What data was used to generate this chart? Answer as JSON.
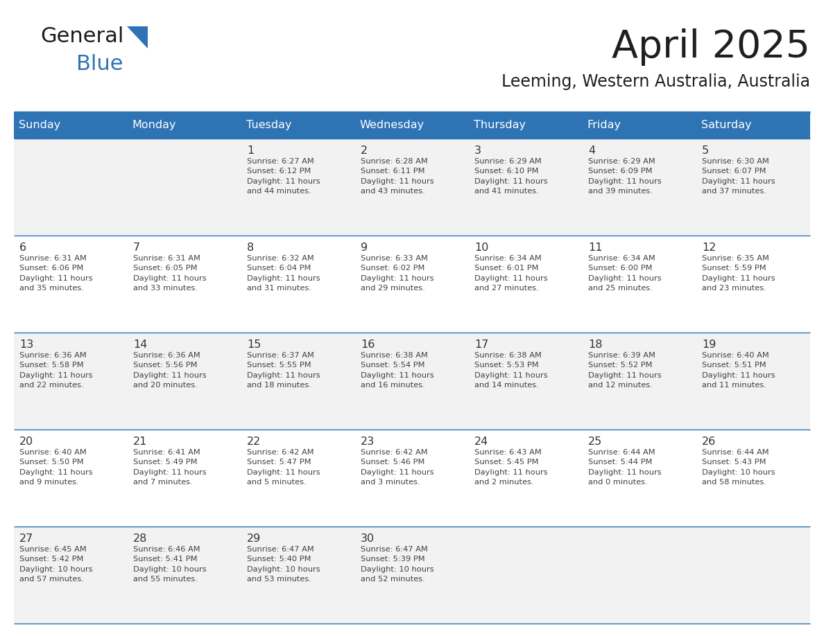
{
  "title": "April 2025",
  "subtitle": "Leeming, Western Australia, Australia",
  "days_of_week": [
    "Sunday",
    "Monday",
    "Tuesday",
    "Wednesday",
    "Thursday",
    "Friday",
    "Saturday"
  ],
  "header_bg_color": "#2E74B5",
  "header_text_color": "#FFFFFF",
  "cell_bg_even": "#F2F2F2",
  "cell_bg_odd": "#FFFFFF",
  "grid_line_color": "#2E74B5",
  "day_number_color": "#333333",
  "cell_text_color": "#404040",
  "title_color": "#1F1F1F",
  "subtitle_color": "#1F1F1F",
  "logo_general_color": "#1A1A1A",
  "logo_blue_color": "#2E74B5",
  "weeks": [
    {
      "bg": "#F2F2F2",
      "days": [
        {
          "date": null,
          "info": null
        },
        {
          "date": null,
          "info": null
        },
        {
          "date": 1,
          "info": "Sunrise: 6:27 AM\nSunset: 6:12 PM\nDaylight: 11 hours\nand 44 minutes."
        },
        {
          "date": 2,
          "info": "Sunrise: 6:28 AM\nSunset: 6:11 PM\nDaylight: 11 hours\nand 43 minutes."
        },
        {
          "date": 3,
          "info": "Sunrise: 6:29 AM\nSunset: 6:10 PM\nDaylight: 11 hours\nand 41 minutes."
        },
        {
          "date": 4,
          "info": "Sunrise: 6:29 AM\nSunset: 6:09 PM\nDaylight: 11 hours\nand 39 minutes."
        },
        {
          "date": 5,
          "info": "Sunrise: 6:30 AM\nSunset: 6:07 PM\nDaylight: 11 hours\nand 37 minutes."
        }
      ]
    },
    {
      "bg": "#FFFFFF",
      "days": [
        {
          "date": 6,
          "info": "Sunrise: 6:31 AM\nSunset: 6:06 PM\nDaylight: 11 hours\nand 35 minutes."
        },
        {
          "date": 7,
          "info": "Sunrise: 6:31 AM\nSunset: 6:05 PM\nDaylight: 11 hours\nand 33 minutes."
        },
        {
          "date": 8,
          "info": "Sunrise: 6:32 AM\nSunset: 6:04 PM\nDaylight: 11 hours\nand 31 minutes."
        },
        {
          "date": 9,
          "info": "Sunrise: 6:33 AM\nSunset: 6:02 PM\nDaylight: 11 hours\nand 29 minutes."
        },
        {
          "date": 10,
          "info": "Sunrise: 6:34 AM\nSunset: 6:01 PM\nDaylight: 11 hours\nand 27 minutes."
        },
        {
          "date": 11,
          "info": "Sunrise: 6:34 AM\nSunset: 6:00 PM\nDaylight: 11 hours\nand 25 minutes."
        },
        {
          "date": 12,
          "info": "Sunrise: 6:35 AM\nSunset: 5:59 PM\nDaylight: 11 hours\nand 23 minutes."
        }
      ]
    },
    {
      "bg": "#F2F2F2",
      "days": [
        {
          "date": 13,
          "info": "Sunrise: 6:36 AM\nSunset: 5:58 PM\nDaylight: 11 hours\nand 22 minutes."
        },
        {
          "date": 14,
          "info": "Sunrise: 6:36 AM\nSunset: 5:56 PM\nDaylight: 11 hours\nand 20 minutes."
        },
        {
          "date": 15,
          "info": "Sunrise: 6:37 AM\nSunset: 5:55 PM\nDaylight: 11 hours\nand 18 minutes."
        },
        {
          "date": 16,
          "info": "Sunrise: 6:38 AM\nSunset: 5:54 PM\nDaylight: 11 hours\nand 16 minutes."
        },
        {
          "date": 17,
          "info": "Sunrise: 6:38 AM\nSunset: 5:53 PM\nDaylight: 11 hours\nand 14 minutes."
        },
        {
          "date": 18,
          "info": "Sunrise: 6:39 AM\nSunset: 5:52 PM\nDaylight: 11 hours\nand 12 minutes."
        },
        {
          "date": 19,
          "info": "Sunrise: 6:40 AM\nSunset: 5:51 PM\nDaylight: 11 hours\nand 11 minutes."
        }
      ]
    },
    {
      "bg": "#FFFFFF",
      "days": [
        {
          "date": 20,
          "info": "Sunrise: 6:40 AM\nSunset: 5:50 PM\nDaylight: 11 hours\nand 9 minutes."
        },
        {
          "date": 21,
          "info": "Sunrise: 6:41 AM\nSunset: 5:49 PM\nDaylight: 11 hours\nand 7 minutes."
        },
        {
          "date": 22,
          "info": "Sunrise: 6:42 AM\nSunset: 5:47 PM\nDaylight: 11 hours\nand 5 minutes."
        },
        {
          "date": 23,
          "info": "Sunrise: 6:42 AM\nSunset: 5:46 PM\nDaylight: 11 hours\nand 3 minutes."
        },
        {
          "date": 24,
          "info": "Sunrise: 6:43 AM\nSunset: 5:45 PM\nDaylight: 11 hours\nand 2 minutes."
        },
        {
          "date": 25,
          "info": "Sunrise: 6:44 AM\nSunset: 5:44 PM\nDaylight: 11 hours\nand 0 minutes."
        },
        {
          "date": 26,
          "info": "Sunrise: 6:44 AM\nSunset: 5:43 PM\nDaylight: 10 hours\nand 58 minutes."
        }
      ]
    },
    {
      "bg": "#F2F2F2",
      "days": [
        {
          "date": 27,
          "info": "Sunrise: 6:45 AM\nSunset: 5:42 PM\nDaylight: 10 hours\nand 57 minutes."
        },
        {
          "date": 28,
          "info": "Sunrise: 6:46 AM\nSunset: 5:41 PM\nDaylight: 10 hours\nand 55 minutes."
        },
        {
          "date": 29,
          "info": "Sunrise: 6:47 AM\nSunset: 5:40 PM\nDaylight: 10 hours\nand 53 minutes."
        },
        {
          "date": 30,
          "info": "Sunrise: 6:47 AM\nSunset: 5:39 PM\nDaylight: 10 hours\nand 52 minutes."
        },
        {
          "date": null,
          "info": null
        },
        {
          "date": null,
          "info": null
        },
        {
          "date": null,
          "info": null
        }
      ]
    }
  ]
}
